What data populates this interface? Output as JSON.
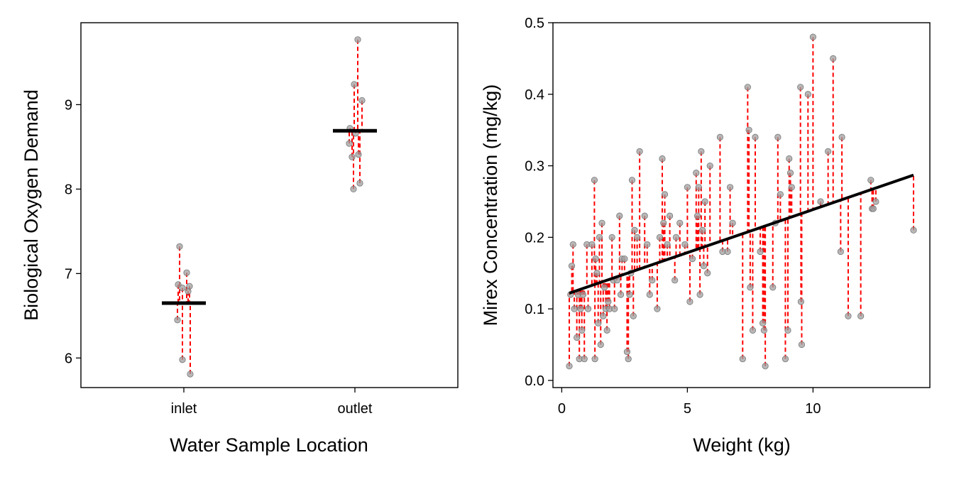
{
  "chart_data": [
    {
      "type": "scatter",
      "xlabel": "Water Sample Location",
      "ylabel": "Biological Oxygen Demand",
      "categories": [
        "inlet",
        "outlet"
      ],
      "ylim": [
        5.65,
        9.97
      ],
      "yticks": [
        6,
        7,
        8,
        9
      ],
      "grid": false,
      "group_means": [
        6.65,
        8.69
      ],
      "points": [
        {
          "x": "inlet",
          "y": 7.32
        },
        {
          "x": "inlet",
          "y": 7.01
        },
        {
          "x": "inlet",
          "y": 6.87
        },
        {
          "x": "inlet",
          "y": 6.85
        },
        {
          "x": "inlet",
          "y": 6.83
        },
        {
          "x": "inlet",
          "y": 6.79
        },
        {
          "x": "inlet",
          "y": 6.45
        },
        {
          "x": "inlet",
          "y": 5.98
        },
        {
          "x": "inlet",
          "y": 5.81
        },
        {
          "x": "outlet",
          "y": 9.77
        },
        {
          "x": "outlet",
          "y": 9.24
        },
        {
          "x": "outlet",
          "y": 9.05
        },
        {
          "x": "outlet",
          "y": 8.72
        },
        {
          "x": "outlet",
          "y": 8.66
        },
        {
          "x": "outlet",
          "y": 8.54
        },
        {
          "x": "outlet",
          "y": 8.41
        },
        {
          "x": "outlet",
          "y": 8.38
        },
        {
          "x": "outlet",
          "y": 8.07
        },
        {
          "x": "outlet",
          "y": 8.0
        }
      ],
      "colors": {
        "points": "#a0a0a0",
        "residuals": "#ff0000",
        "fit": "#000000"
      }
    },
    {
      "type": "scatter",
      "xlabel": "Weight (kg)",
      "ylabel": "Mirex Concentration (mg/kg)",
      "xlim": [
        -0.35,
        14.65
      ],
      "ylim": [
        -0.01,
        0.5
      ],
      "xticks": [
        0,
        5,
        10
      ],
      "yticks": [
        0.0,
        0.1,
        0.2,
        0.3,
        0.4,
        0.5
      ],
      "grid": false,
      "fit_line": {
        "x": [
          0.3,
          14.0
        ],
        "y": [
          0.122,
          0.287
        ]
      },
      "points": [
        [
          0.3,
          0.02
        ],
        [
          0.35,
          0.12
        ],
        [
          0.4,
          0.16
        ],
        [
          0.45,
          0.19
        ],
        [
          0.5,
          0.1
        ],
        [
          0.6,
          0.06
        ],
        [
          0.65,
          0.12
        ],
        [
          0.7,
          0.03
        ],
        [
          0.75,
          0.1
        ],
        [
          0.8,
          0.07
        ],
        [
          0.85,
          0.12
        ],
        [
          0.9,
          0.03
        ],
        [
          1.0,
          0.19
        ],
        [
          1.05,
          0.1
        ],
        [
          1.2,
          0.19
        ],
        [
          1.3,
          0.28
        ],
        [
          1.32,
          0.03
        ],
        [
          1.35,
          0.17
        ],
        [
          1.4,
          0.15
        ],
        [
          1.45,
          0.08
        ],
        [
          1.5,
          0.2
        ],
        [
          1.55,
          0.05
        ],
        [
          1.6,
          0.22
        ],
        [
          1.65,
          0.09
        ],
        [
          1.7,
          0.13
        ],
        [
          1.75,
          0.1
        ],
        [
          1.8,
          0.07
        ],
        [
          1.85,
          0.11
        ],
        [
          1.9,
          0.1
        ],
        [
          2.0,
          0.2
        ],
        [
          2.05,
          0.14
        ],
        [
          2.1,
          0.1
        ],
        [
          2.2,
          0.14
        ],
        [
          2.3,
          0.23
        ],
        [
          2.35,
          0.12
        ],
        [
          2.4,
          0.17
        ],
        [
          2.5,
          0.17
        ],
        [
          2.6,
          0.04
        ],
        [
          2.65,
          0.03
        ],
        [
          2.7,
          0.12
        ],
        [
          2.75,
          0.15
        ],
        [
          2.8,
          0.28
        ],
        [
          2.85,
          0.09
        ],
        [
          2.9,
          0.21
        ],
        [
          3.0,
          0.2
        ],
        [
          3.1,
          0.32
        ],
        [
          3.3,
          0.23
        ],
        [
          3.4,
          0.19
        ],
        [
          3.5,
          0.12
        ],
        [
          3.6,
          0.14
        ],
        [
          3.8,
          0.1
        ],
        [
          3.9,
          0.2
        ],
        [
          4.0,
          0.31
        ],
        [
          4.05,
          0.22
        ],
        [
          4.1,
          0.26
        ],
        [
          4.2,
          0.19
        ],
        [
          4.3,
          0.23
        ],
        [
          4.5,
          0.14
        ],
        [
          4.55,
          0.2
        ],
        [
          4.7,
          0.22
        ],
        [
          4.9,
          0.19
        ],
        [
          5.0,
          0.27
        ],
        [
          5.1,
          0.11
        ],
        [
          5.2,
          0.17
        ],
        [
          5.35,
          0.29
        ],
        [
          5.4,
          0.23
        ],
        [
          5.45,
          0.27
        ],
        [
          5.5,
          0.12
        ],
        [
          5.55,
          0.32
        ],
        [
          5.6,
          0.21
        ],
        [
          5.65,
          0.16
        ],
        [
          5.7,
          0.25
        ],
        [
          5.8,
          0.15
        ],
        [
          5.9,
          0.3
        ],
        [
          6.3,
          0.34
        ],
        [
          6.4,
          0.18
        ],
        [
          6.6,
          0.18
        ],
        [
          6.7,
          0.27
        ],
        [
          6.8,
          0.22
        ],
        [
          7.2,
          0.03
        ],
        [
          7.4,
          0.41
        ],
        [
          7.45,
          0.35
        ],
        [
          7.5,
          0.13
        ],
        [
          7.6,
          0.07
        ],
        [
          7.7,
          0.34
        ],
        [
          7.9,
          0.18
        ],
        [
          8.0,
          0.08
        ],
        [
          8.05,
          0.07
        ],
        [
          8.1,
          0.02
        ],
        [
          8.4,
          0.13
        ],
        [
          8.5,
          0.22
        ],
        [
          8.6,
          0.34
        ],
        [
          8.7,
          0.26
        ],
        [
          8.9,
          0.03
        ],
        [
          9.0,
          0.07
        ],
        [
          9.05,
          0.31
        ],
        [
          9.1,
          0.29
        ],
        [
          9.15,
          0.27
        ],
        [
          9.5,
          0.41
        ],
        [
          9.52,
          0.11
        ],
        [
          9.55,
          0.05
        ],
        [
          9.8,
          0.4
        ],
        [
          10.0,
          0.48
        ],
        [
          10.3,
          0.25
        ],
        [
          10.6,
          0.32
        ],
        [
          10.8,
          0.45
        ],
        [
          11.1,
          0.18
        ],
        [
          11.15,
          0.34
        ],
        [
          11.4,
          0.09
        ],
        [
          11.9,
          0.09
        ],
        [
          12.3,
          0.28
        ],
        [
          12.35,
          0.24
        ],
        [
          12.4,
          0.24
        ],
        [
          12.5,
          0.25
        ],
        [
          14.0,
          0.21
        ]
      ],
      "colors": {
        "points": "#a0a0a0",
        "residuals": "#ff0000",
        "fit": "#000000"
      }
    }
  ]
}
